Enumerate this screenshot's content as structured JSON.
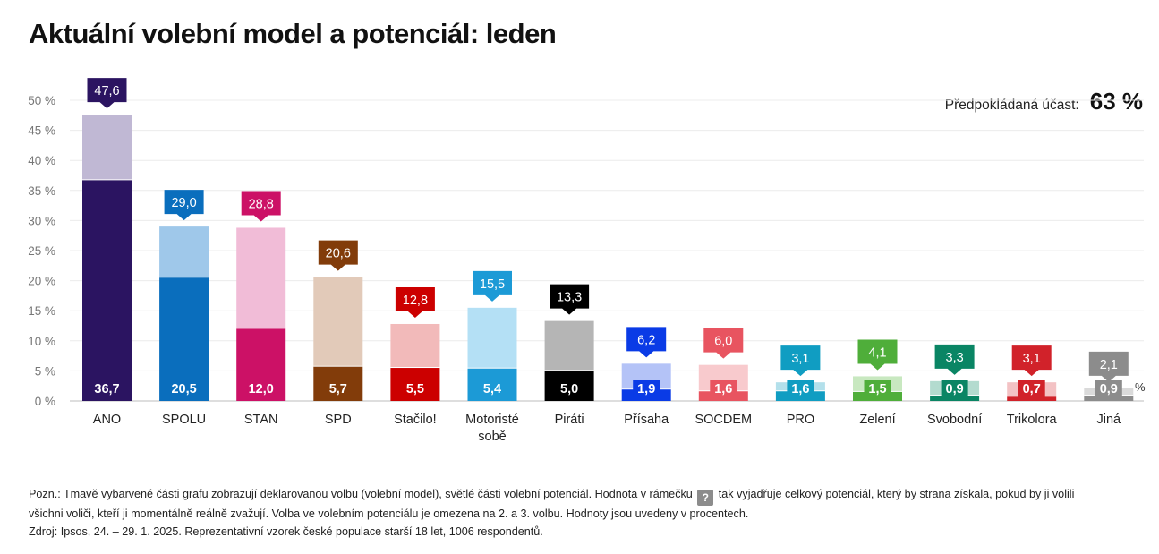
{
  "title": "Aktuální volební model a potenciál: leden",
  "turnout": {
    "label": "Předpokládaná účast:",
    "value": "63 %"
  },
  "note": {
    "before_box": "Pozn.: Tmavě vybarvené části grafu zobrazují deklarovanou volbu (volební model), světlé části volební potenciál. Hodnota v rámečku",
    "box_symbol": "?",
    "after_box": "tak vyjadřuje celkový potenciál, který by strana získala, pokud by ji volili všichni voliči, kteří ji momentálně reálně zvažují. Volba ve volebním potenciálu je omezena na 2. a 3. volbu. Hodnoty jsou uvedeny v procentech."
  },
  "source": "Zdroj: Ipsos, 24. – 29. 1. 2025. Reprezentativní vzorek české populace starší 18 let, 1006 respondentů.",
  "chart_data": {
    "type": "bar",
    "unit_label": "%",
    "ylim": [
      0,
      50
    ],
    "yticks": [
      "0 %",
      "5 %",
      "10 %",
      "15 %",
      "20 %",
      "25 %",
      "30 %",
      "35 %",
      "40 %",
      "45 %",
      "50 %"
    ],
    "grid": true,
    "categories": [
      "ANO",
      "SPOLU",
      "STAN",
      "SPD",
      "Stačilo!",
      "Motoristé sobě",
      "Piráti",
      "Přísaha",
      "SOCDEM",
      "PRO",
      "Zelení",
      "Svobodní",
      "Trikolora",
      "Jiná"
    ],
    "series": [
      {
        "values": [
          36.7,
          20.5,
          12.0,
          5.7,
          5.5,
          5.4,
          5.0,
          1.9,
          1.6,
          1.6,
          1.5,
          0.9,
          0.7,
          0.9
        ],
        "labels": [
          "36,7",
          "20,5",
          "12,0",
          "5,7",
          "5,5",
          "5,4",
          "5,0",
          "1,9",
          "1,6",
          "1,6",
          "1,5",
          "0,9",
          "0,7",
          "0,9"
        ]
      },
      {
        "values": [
          47.6,
          29.0,
          28.8,
          20.6,
          12.8,
          15.5,
          13.3,
          6.2,
          6.0,
          3.1,
          4.1,
          3.3,
          3.1,
          2.1
        ],
        "labels": [
          "47,6",
          "29,0",
          "28,8",
          "20,6",
          "12,8",
          "15,5",
          "13,3",
          "6,2",
          "6,0",
          "3,1",
          "4,1",
          "3,3",
          "3,1",
          "2,1"
        ]
      }
    ],
    "colors": [
      "#2b1461",
      "#0a6ebd",
      "#cc1166",
      "#823c0a",
      "#cc0000",
      "#1c9ad6",
      "#000000",
      "#0a3be6",
      "#e85460",
      "#109dc2",
      "#4fae3a",
      "#0a8564",
      "#d1222a",
      "#8c8c8c"
    ],
    "light_colors": [
      "#c0b8d4",
      "#9fc8ea",
      "#f1bcd7",
      "#e2cab9",
      "#f2baba",
      "#b4e0f5",
      "#b5b5b5",
      "#b4c3f7",
      "#f8cacd",
      "#b3e0eb",
      "#c8e8c0",
      "#b3dbcf",
      "#f3c2c4",
      "#dadada"
    ]
  }
}
